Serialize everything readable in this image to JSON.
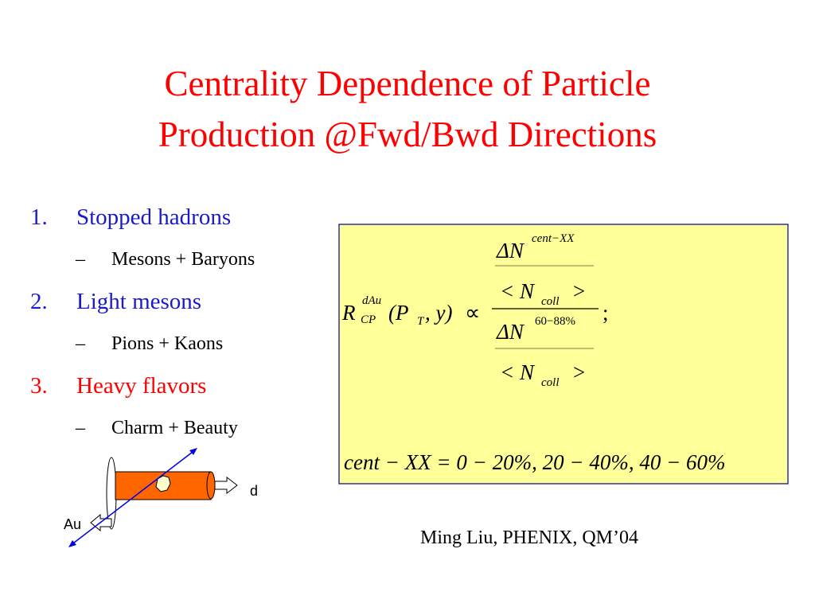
{
  "title": [
    "Centrality Dependence of Particle",
    "Production @Fwd/Bwd Directions"
  ],
  "list": [
    {
      "number": "1.",
      "text": "Stopped hadrons",
      "sub": {
        "marker": "–",
        "text": "Mesons + Baryons"
      }
    },
    {
      "number": "2.",
      "text": "Light mesons",
      "sub": {
        "marker": "–",
        "text": "Pions + Kaons"
      }
    },
    {
      "number": "3.",
      "text": "Heavy flavors",
      "sub": {
        "marker": "–",
        "text": "Charm + Beauty"
      }
    }
  ],
  "formula": {
    "lhs": {
      "symbol": "R",
      "sup": "dAu",
      "sub": "CP",
      "open": "(P",
      "arg_sub": "T",
      "rest": ", y)",
      "prop": "∝"
    },
    "numerator": {
      "delta": "ΔN",
      "sup": "cent−XX",
      "ncoll": "< N",
      "coll": "coll",
      "close": ">"
    },
    "denominator": {
      "delta": "ΔN",
      "sup": "60−88%",
      "ncoll": "< N",
      "coll": "coll",
      "close": ">"
    },
    "end": ";",
    "range": "cent − XX  = 0 − 20%, 20 − 40%, 40 − 60%"
  },
  "diagram": {
    "right_label": "d",
    "left_label": "Au"
  },
  "footer": "Ming Liu, PHENIX, QM’04"
}
